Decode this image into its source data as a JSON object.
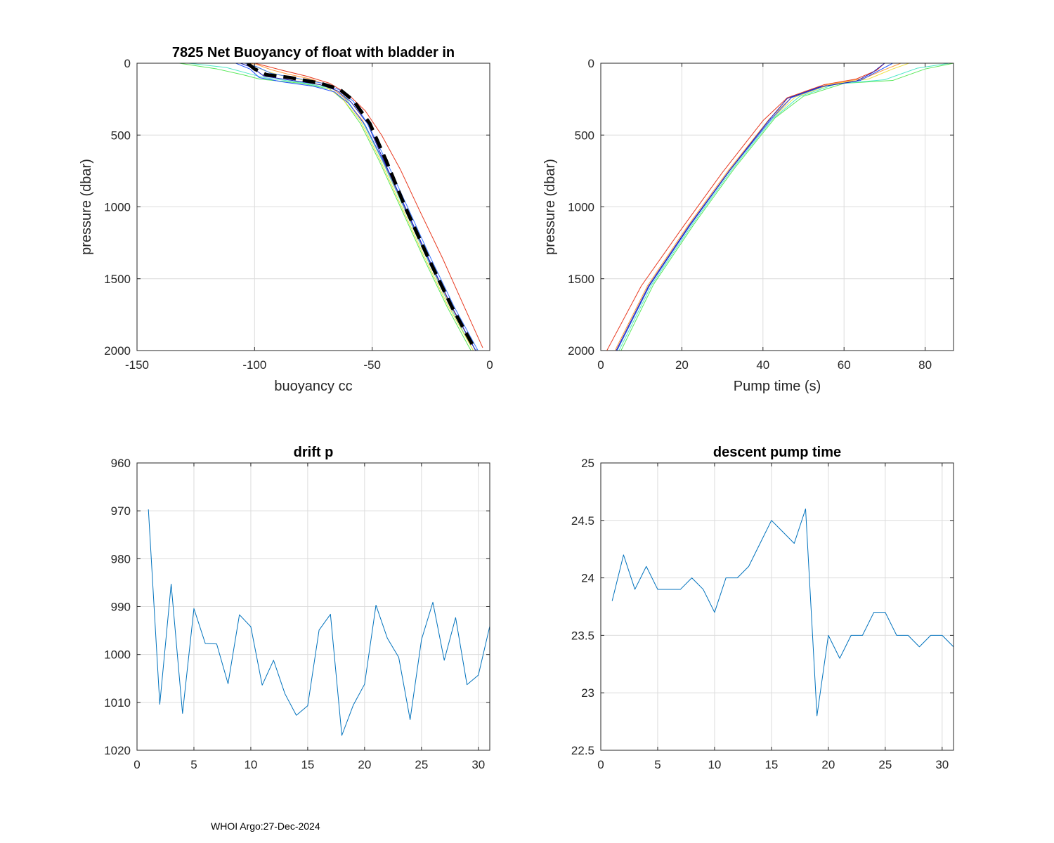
{
  "footer": "WHOI Argo:27-Dec-2024",
  "chart_data": [
    {
      "id": "buoyancy",
      "type": "line",
      "title": "7825 Net Buoyancy of float with bladder in",
      "xlabel": "buoyancy cc",
      "ylabel": "pressure (dbar)",
      "xlim": [
        -150,
        0
      ],
      "ylim": [
        0,
        2000
      ],
      "y_reversed": true,
      "xticks": [
        -150,
        -100,
        -50,
        0
      ],
      "yticks": [
        0,
        500,
        1000,
        1500,
        2000
      ],
      "series": [
        {
          "name": "profile-green",
          "color": "#5ae85a",
          "x": [
            -132,
            -116,
            -105,
            -98,
            -80,
            -68,
            -62,
            -55,
            -47,
            -38,
            -28,
            -18,
            -8
          ],
          "y": [
            0,
            40,
            80,
            110,
            140,
            180,
            260,
            420,
            680,
            1000,
            1360,
            1700,
            2000
          ]
        },
        {
          "name": "profile-cyan",
          "color": "#4ee8c8",
          "x": [
            -128,
            -112,
            -103,
            -96,
            -80,
            -67,
            -61,
            -54,
            -46,
            -37,
            -27,
            -17,
            -7
          ],
          "y": [
            0,
            30,
            70,
            100,
            135,
            175,
            250,
            410,
            670,
            990,
            1350,
            1690,
            2000
          ]
        },
        {
          "name": "profile-yellow",
          "color": "#f0e040",
          "x": [
            -104,
            -100,
            -96,
            -90,
            -80,
            -70,
            -63,
            -55,
            -47,
            -38,
            -28,
            -18,
            -7
          ],
          "y": [
            0,
            20,
            50,
            80,
            115,
            160,
            240,
            400,
            660,
            980,
            1340,
            1680,
            2000
          ]
        },
        {
          "name": "profile-orange",
          "color": "#ff9a3a",
          "x": [
            -102,
            -98,
            -93,
            -86,
            -76,
            -68,
            -62,
            -54,
            -46,
            -37,
            -27,
            -17,
            -6
          ],
          "y": [
            0,
            15,
            45,
            75,
            110,
            160,
            240,
            400,
            660,
            980,
            1340,
            1680,
            2000
          ]
        },
        {
          "name": "profile-red",
          "color": "#e83a20",
          "x": [
            -100,
            -95,
            -88,
            -78,
            -68,
            -60,
            -53,
            -46,
            -38,
            -30,
            -20,
            -11,
            -3
          ],
          "y": [
            0,
            20,
            50,
            90,
            140,
            220,
            330,
            500,
            740,
            1020,
            1360,
            1690,
            1980
          ]
        },
        {
          "name": "profile-blue-a",
          "color": "#2050ff",
          "x": [
            -108,
            -102,
            -98,
            -88,
            -75,
            -66,
            -60,
            -53,
            -45,
            -36,
            -26,
            -16,
            -6
          ],
          "y": [
            0,
            40,
            100,
            130,
            160,
            200,
            280,
            430,
            690,
            1010,
            1370,
            1700,
            2000
          ]
        },
        {
          "name": "profile-blue-b",
          "color": "#1a1ab8",
          "x": [
            -106,
            -101,
            -96,
            -84,
            -72,
            -65,
            -59,
            -52,
            -45,
            -36,
            -26,
            -16,
            -6
          ],
          "y": [
            0,
            30,
            90,
            120,
            150,
            190,
            270,
            420,
            680,
            1000,
            1360,
            1700,
            2000
          ]
        },
        {
          "name": "profile-blue-c",
          "color": "#3a78ff",
          "x": [
            -104,
            -99,
            -93,
            -82,
            -71,
            -64,
            -58,
            -52,
            -44,
            -35,
            -25,
            -15,
            -5
          ],
          "y": [
            0,
            25,
            70,
            105,
            140,
            185,
            265,
            420,
            680,
            1000,
            1360,
            1700,
            2000
          ]
        }
      ],
      "mean": {
        "name": "mean",
        "color": "#000000",
        "x": [
          -103,
          -100,
          -95,
          -85,
          -72,
          -64,
          -58,
          -51,
          -44,
          -36,
          -26,
          -16,
          -6
        ],
        "y": [
          0,
          40,
          80,
          100,
          140,
          180,
          260,
          420,
          680,
          1000,
          1360,
          1700,
          2000
        ]
      }
    },
    {
      "id": "pumptime",
      "type": "line",
      "title": "",
      "xlabel": "Pump time (s)",
      "ylabel": "pressure (dbar)",
      "xlim": [
        0,
        87
      ],
      "ylim": [
        0,
        2000
      ],
      "y_reversed": true,
      "xticks": [
        0,
        20,
        40,
        60,
        80
      ],
      "yticks": [
        0,
        500,
        1000,
        1500,
        2000
      ],
      "series": [
        {
          "name": "pump-red",
          "color": "#e83a20",
          "x": [
            1.5,
            10,
            20,
            30,
            40,
            46,
            55,
            63,
            68,
            70
          ],
          "y": [
            2000,
            1550,
            1150,
            760,
            400,
            240,
            150,
            110,
            50,
            0
          ]
        },
        {
          "name": "pump-green",
          "color": "#5ae85a",
          "x": [
            5,
            13,
            23,
            33,
            43,
            50,
            60,
            72,
            80,
            87
          ],
          "y": [
            2000,
            1540,
            1120,
            730,
            380,
            230,
            140,
            120,
            40,
            0
          ]
        },
        {
          "name": "pump-cyan",
          "color": "#4ee8c8",
          "x": [
            4.5,
            12.5,
            22.5,
            32.5,
            42.5,
            49,
            58,
            70,
            78,
            86
          ],
          "y": [
            2000,
            1545,
            1125,
            735,
            385,
            232,
            145,
            115,
            35,
            0
          ]
        },
        {
          "name": "pump-yellow",
          "color": "#f0e040",
          "x": [
            4,
            12,
            22,
            32,
            42,
            48,
            57,
            66,
            72,
            76
          ],
          "y": [
            2000,
            1550,
            1130,
            740,
            390,
            235,
            145,
            110,
            40,
            0
          ]
        },
        {
          "name": "pump-orange",
          "color": "#ff9a3a",
          "x": [
            3.5,
            11.5,
            21.5,
            31.5,
            41.5,
            47,
            56,
            65,
            70,
            74
          ],
          "y": [
            2000,
            1550,
            1130,
            745,
            390,
            238,
            148,
            105,
            45,
            0
          ]
        },
        {
          "name": "pump-blue-a",
          "color": "#2050ff",
          "x": [
            4,
            12,
            22,
            32,
            42,
            47,
            55,
            64,
            68,
            72
          ],
          "y": [
            2000,
            1550,
            1130,
            740,
            390,
            240,
            160,
            120,
            60,
            0
          ]
        },
        {
          "name": "pump-blue-b",
          "color": "#1a1ab8",
          "x": [
            3.8,
            11.8,
            21.8,
            31.8,
            41.5,
            46,
            54,
            63,
            67,
            70
          ],
          "y": [
            2000,
            1550,
            1130,
            745,
            395,
            245,
            165,
            125,
            65,
            0
          ]
        }
      ]
    },
    {
      "id": "driftp",
      "type": "line",
      "title": "drift p",
      "xlabel": "",
      "ylabel": "",
      "xlim": [
        0,
        31
      ],
      "ylim": [
        960,
        1020
      ],
      "y_reversed": true,
      "xticks": [
        0,
        5,
        10,
        15,
        20,
        25,
        30
      ],
      "yticks": [
        960,
        970,
        980,
        990,
        1000,
        1010,
        1020
      ],
      "series": [
        {
          "name": "drift p",
          "color": "#0072bd",
          "x": [
            1,
            2,
            3,
            4,
            5,
            6,
            7,
            8,
            9,
            10,
            11,
            12,
            13,
            14,
            15,
            16,
            17,
            18,
            19,
            20,
            21,
            22,
            23,
            24,
            25,
            26,
            27,
            28,
            29,
            30,
            31
          ],
          "y": [
            969.7,
            1010.4,
            985.3,
            1012.3,
            990.4,
            997.7,
            997.8,
            1006.1,
            991.7,
            994.2,
            1006.4,
            1001.2,
            1008.2,
            1012.7,
            1010.7,
            994.9,
            991.6,
            1016.9,
            1010.6,
            1006.2,
            989.7,
            996.6,
            1000.6,
            1013.6,
            996.9,
            989.1,
            1001.2,
            992.3,
            1006.3,
            1004.3,
            994.1
          ]
        }
      ]
    },
    {
      "id": "descentpump",
      "type": "line",
      "title": "descent pump time",
      "xlabel": "",
      "ylabel": "",
      "xlim": [
        0,
        31
      ],
      "ylim": [
        22.5,
        25
      ],
      "y_reversed": false,
      "xticks": [
        0,
        5,
        10,
        15,
        20,
        25,
        30
      ],
      "yticks": [
        22.5,
        23,
        23.5,
        24,
        24.5,
        25
      ],
      "series": [
        {
          "name": "descent pump time",
          "color": "#0072bd",
          "x": [
            1,
            2,
            3,
            4,
            5,
            6,
            7,
            8,
            9,
            10,
            11,
            12,
            13,
            14,
            15,
            16,
            17,
            18,
            19,
            20,
            21,
            22,
            23,
            24,
            25,
            26,
            27,
            28,
            29,
            30,
            31
          ],
          "y": [
            23.8,
            24.2,
            23.9,
            24.1,
            23.9,
            23.9,
            23.9,
            24.0,
            23.9,
            23.7,
            24.0,
            24.0,
            24.1,
            24.3,
            24.5,
            24.4,
            24.3,
            24.6,
            22.8,
            23.5,
            23.3,
            23.5,
            23.5,
            23.7,
            23.7,
            23.5,
            23.5,
            23.4,
            23.5,
            23.5,
            23.4
          ]
        }
      ]
    }
  ]
}
